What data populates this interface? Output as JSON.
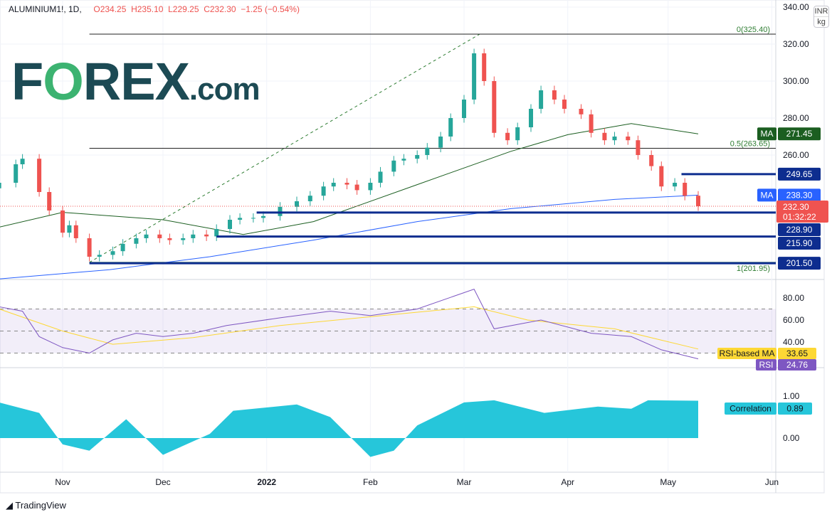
{
  "header": {
    "symbol": "ALUMINIUM1!, 1D,",
    "open": "O234.25",
    "high": "H235.10",
    "low": "L229.25",
    "close": "C232.30",
    "change": "−1.25 (−0.54%)"
  },
  "logo": {
    "text": "FOREX.com"
  },
  "unit": {
    "currency": "INR",
    "unit": "kg"
  },
  "footer": {
    "brand": "TradingView"
  },
  "colors": {
    "up": "#26a69a",
    "down": "#ef5350",
    "ma50": "#1b5e20",
    "ma200": "#2962ff",
    "levels": "#0d2d8f",
    "rsi": "#7e57c2",
    "rsi_ma": "#fdd835",
    "correlation": "#26c6da"
  },
  "chart_data": [
    {
      "type": "candlestick",
      "panel": "price",
      "ylim": [
        195,
        340
      ],
      "yticks": [
        260,
        280,
        300,
        320,
        340
      ],
      "xticks": [
        {
          "date": "2021-11-01",
          "label": "Nov"
        },
        {
          "date": "2021-12-01",
          "label": "Dec"
        },
        {
          "date": "2022-01-01",
          "label": "2022"
        },
        {
          "date": "2022-02-01",
          "label": "Feb"
        },
        {
          "date": "2022-03-01",
          "label": "Mar"
        },
        {
          "date": "2022-04-01",
          "label": "Apr"
        },
        {
          "date": "2022-05-01",
          "label": "May"
        },
        {
          "date": "2022-06-01",
          "label": "Jun"
        }
      ],
      "closes": [
        [
          "2021-10-13",
          245
        ],
        [
          "2021-10-18",
          255
        ],
        [
          "2021-10-20",
          258
        ],
        [
          "2021-10-25",
          240
        ],
        [
          "2021-10-28",
          230
        ],
        [
          "2021-11-01",
          218
        ],
        [
          "2021-11-03",
          222
        ],
        [
          "2021-11-05",
          215
        ],
        [
          "2021-11-09",
          205
        ],
        [
          "2021-11-12",
          206
        ],
        [
          "2021-11-16",
          208
        ],
        [
          "2021-11-19",
          212
        ],
        [
          "2021-11-23",
          215
        ],
        [
          "2021-11-26",
          217
        ],
        [
          "2021-11-30",
          215
        ],
        [
          "2021-12-03",
          214
        ],
        [
          "2021-12-07",
          215
        ],
        [
          "2021-12-10",
          217
        ],
        [
          "2021-12-14",
          216
        ],
        [
          "2021-12-17",
          220
        ],
        [
          "2021-12-21",
          225
        ],
        [
          "2021-12-24",
          226
        ],
        [
          "2021-12-28",
          226
        ],
        [
          "2021-12-31",
          227
        ],
        [
          "2022-01-05",
          232
        ],
        [
          "2022-01-10",
          235
        ],
        [
          "2022-01-14",
          238
        ],
        [
          "2022-01-18",
          243
        ],
        [
          "2022-01-21",
          245
        ],
        [
          "2022-01-25",
          244
        ],
        [
          "2022-01-28",
          241
        ],
        [
          "2022-02-01",
          245
        ],
        [
          "2022-02-04",
          251
        ],
        [
          "2022-02-08",
          257
        ],
        [
          "2022-02-11",
          258
        ],
        [
          "2022-02-15",
          260
        ],
        [
          "2022-02-18",
          264
        ],
        [
          "2022-02-22",
          270
        ],
        [
          "2022-02-25",
          280
        ],
        [
          "2022-03-01",
          290
        ],
        [
          "2022-03-04",
          315
        ],
        [
          "2022-03-07",
          300
        ],
        [
          "2022-03-10",
          272
        ],
        [
          "2022-03-14",
          268
        ],
        [
          "2022-03-17",
          275
        ],
        [
          "2022-03-21",
          285
        ],
        [
          "2022-03-24",
          295
        ],
        [
          "2022-03-28",
          290
        ],
        [
          "2022-03-31",
          285
        ],
        [
          "2022-04-05",
          282
        ],
        [
          "2022-04-08",
          272
        ],
        [
          "2022-04-12",
          268
        ],
        [
          "2022-04-15",
          270
        ],
        [
          "2022-04-19",
          268
        ],
        [
          "2022-04-22",
          260
        ],
        [
          "2022-04-26",
          254
        ],
        [
          "2022-04-29",
          243
        ],
        [
          "2022-05-03",
          245
        ],
        [
          "2022-05-06",
          238
        ],
        [
          "2022-05-10",
          232.3
        ]
      ],
      "ma_green": {
        "label": "MA",
        "value": "271.45",
        "points": [
          [
            "2021-10-13",
            221
          ],
          [
            "2021-11-01",
            229
          ],
          [
            "2021-12-01",
            225
          ],
          [
            "2021-12-25",
            217
          ],
          [
            "2022-01-15",
            224
          ],
          [
            "2022-02-15",
            244
          ],
          [
            "2022-03-15",
            262
          ],
          [
            "2022-04-01",
            271
          ],
          [
            "2022-04-20",
            277
          ],
          [
            "2022-05-10",
            271.45
          ]
        ]
      },
      "ma_blue": {
        "label": "MA",
        "value": "238.30",
        "points": [
          [
            "2021-10-13",
            193
          ],
          [
            "2021-11-15",
            198
          ],
          [
            "2021-12-15",
            205
          ],
          [
            "2022-01-15",
            214
          ],
          [
            "2022-02-15",
            224
          ],
          [
            "2022-03-15",
            231
          ],
          [
            "2022-04-15",
            236
          ],
          [
            "2022-05-10",
            238.3
          ]
        ]
      },
      "fib": [
        {
          "label": "0(325.40)",
          "value": 325.4
        },
        {
          "label": "0.5(263.65)",
          "value": 263.65
        },
        {
          "label": "1(201.95)",
          "value": 201.95
        }
      ],
      "levels": [
        {
          "value": 249.65,
          "label": "249.65",
          "from": "2022-05-05"
        },
        {
          "value": 228.9,
          "label": "228.90",
          "from": "2021-12-29"
        },
        {
          "value": 215.9,
          "label": "215.90",
          "from": "2021-12-17"
        },
        {
          "value": 201.5,
          "label": "201.50",
          "from": "2021-11-09"
        }
      ],
      "last": {
        "value": 232.3,
        "label": "232.30",
        "countdown": "01:32:22"
      }
    },
    {
      "type": "line",
      "panel": "rsi",
      "ylim": [
        16,
        92
      ],
      "yticks": [
        40,
        60,
        80
      ],
      "bands": [
        30,
        50,
        70
      ],
      "rsi": {
        "label": "RSI",
        "value": "24.76",
        "points": [
          [
            "2021-10-13",
            72
          ],
          [
            "2021-10-20",
            68
          ],
          [
            "2021-10-25",
            45
          ],
          [
            "2021-11-01",
            35
          ],
          [
            "2021-11-09",
            30
          ],
          [
            "2021-11-16",
            42
          ],
          [
            "2021-11-23",
            48
          ],
          [
            "2021-12-01",
            45
          ],
          [
            "2021-12-10",
            48
          ],
          [
            "2021-12-20",
            55
          ],
          [
            "2022-01-05",
            62
          ],
          [
            "2022-01-20",
            68
          ],
          [
            "2022-02-01",
            64
          ],
          [
            "2022-02-15",
            70
          ],
          [
            "2022-03-04",
            88
          ],
          [
            "2022-03-10",
            52
          ],
          [
            "2022-03-24",
            60
          ],
          [
            "2022-04-08",
            48
          ],
          [
            "2022-04-20",
            45
          ],
          [
            "2022-04-29",
            33
          ],
          [
            "2022-05-10",
            24.76
          ]
        ]
      },
      "rsi_ma": {
        "label": "RSI-based MA",
        "value": "33.65",
        "points": [
          [
            "2021-10-13",
            70
          ],
          [
            "2021-11-01",
            50
          ],
          [
            "2021-11-16",
            38
          ],
          [
            "2021-12-10",
            44
          ],
          [
            "2022-01-05",
            55
          ],
          [
            "2022-02-01",
            63
          ],
          [
            "2022-03-04",
            72
          ],
          [
            "2022-03-20",
            60
          ],
          [
            "2022-04-15",
            52
          ],
          [
            "2022-05-10",
            33.65
          ]
        ]
      }
    },
    {
      "type": "area",
      "panel": "correlation",
      "ylim": [
        -0.7,
        1.1
      ],
      "yticks": [
        0,
        1
      ],
      "series": {
        "label": "Correlation",
        "value": "0.89",
        "points": [
          [
            "2021-10-13",
            0.85
          ],
          [
            "2021-10-25",
            0.6
          ],
          [
            "2021-11-01",
            -0.15
          ],
          [
            "2021-11-09",
            -0.3
          ],
          [
            "2021-11-20",
            0.45
          ],
          [
            "2021-12-01",
            -0.4
          ],
          [
            "2021-12-15",
            0.1
          ],
          [
            "2021-12-22",
            0.65
          ],
          [
            "2022-01-10",
            0.8
          ],
          [
            "2022-01-20",
            0.5
          ],
          [
            "2022-02-01",
            -0.45
          ],
          [
            "2022-02-08",
            -0.3
          ],
          [
            "2022-02-15",
            0.3
          ],
          [
            "2022-03-01",
            0.85
          ],
          [
            "2022-03-10",
            0.9
          ],
          [
            "2022-03-25",
            0.6
          ],
          [
            "2022-04-10",
            0.75
          ],
          [
            "2022-04-20",
            0.7
          ],
          [
            "2022-04-25",
            0.9
          ],
          [
            "2022-05-10",
            0.89
          ]
        ]
      }
    }
  ]
}
